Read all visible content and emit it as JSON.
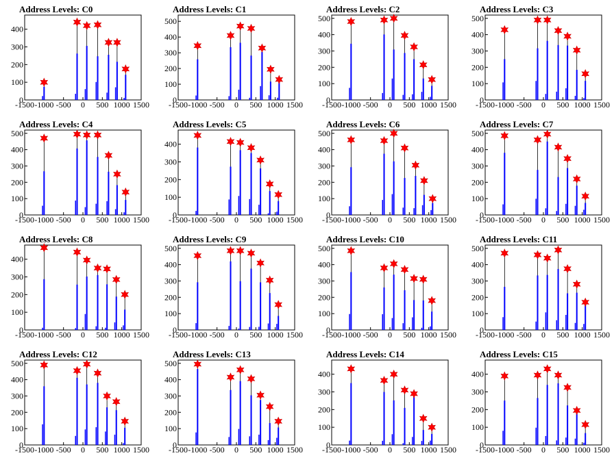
{
  "colors": {
    "bar": "#0000ff",
    "marker": "#ff0000",
    "axis": "#000000"
  },
  "chart_data": [
    {
      "type": "bar",
      "title": "Address Levels: C0",
      "xlim": [
        -1500,
        1500
      ],
      "ylim": [
        0,
        480
      ],
      "yticks": [
        0,
        100,
        200,
        300,
        400
      ],
      "xticks": [
        -1500,
        -1000,
        -500,
        0,
        500,
        1000,
        1500
      ],
      "peaks": [
        {
          "x": -1000,
          "y": 100
        },
        {
          "x": -150,
          "y": 440
        },
        {
          "x": 100,
          "y": 420
        },
        {
          "x": 380,
          "y": 425
        },
        {
          "x": 660,
          "y": 325
        },
        {
          "x": 880,
          "y": 325
        },
        {
          "x": 1100,
          "y": 175
        }
      ]
    },
    {
      "type": "bar",
      "title": "Address Levels: C1",
      "xlim": [
        -1500,
        1500
      ],
      "ylim": [
        0,
        540
      ],
      "yticks": [
        0,
        100,
        200,
        300,
        400,
        500
      ],
      "xticks": [
        -1500,
        -1000,
        -500,
        0,
        500,
        1000,
        1500
      ],
      "peaks": [
        {
          "x": -1000,
          "y": 345
        },
        {
          "x": -150,
          "y": 410
        },
        {
          "x": 100,
          "y": 470
        },
        {
          "x": 380,
          "y": 455
        },
        {
          "x": 660,
          "y": 330
        },
        {
          "x": 880,
          "y": 195
        },
        {
          "x": 1100,
          "y": 130
        }
      ]
    },
    {
      "type": "bar",
      "title": "Address Levels: C2",
      "xlim": [
        -1500,
        1500
      ],
      "ylim": [
        0,
        520
      ],
      "yticks": [
        0,
        100,
        200,
        300,
        400,
        500
      ],
      "xticks": [
        -1500,
        -1000,
        -500,
        0,
        500,
        1000,
        1500
      ],
      "peaks": [
        {
          "x": -1000,
          "y": 480
        },
        {
          "x": -150,
          "y": 490
        },
        {
          "x": 100,
          "y": 500
        },
        {
          "x": 380,
          "y": 395
        },
        {
          "x": 620,
          "y": 325
        },
        {
          "x": 860,
          "y": 215
        },
        {
          "x": 1080,
          "y": 125
        }
      ]
    },
    {
      "type": "bar",
      "title": "Address Levels: C3",
      "xlim": [
        -1500,
        1500
      ],
      "ylim": [
        0,
        520
      ],
      "yticks": [
        0,
        100,
        200,
        300,
        400,
        500
      ],
      "xticks": [
        -1500,
        -1000,
        -500,
        0,
        500,
        1000,
        1500
      ],
      "peaks": [
        {
          "x": -1000,
          "y": 430
        },
        {
          "x": -150,
          "y": 490
        },
        {
          "x": 100,
          "y": 490
        },
        {
          "x": 380,
          "y": 425
        },
        {
          "x": 620,
          "y": 390
        },
        {
          "x": 860,
          "y": 305
        },
        {
          "x": 1080,
          "y": 160
        }
      ]
    },
    {
      "type": "bar",
      "title": "Address Levels: C4",
      "xlim": [
        -1500,
        1500
      ],
      "ylim": [
        0,
        520
      ],
      "yticks": [
        0,
        100,
        200,
        300,
        400,
        500
      ],
      "xticks": [
        -1500,
        -1000,
        -500,
        0,
        500,
        1000,
        1500
      ],
      "peaks": [
        {
          "x": -1000,
          "y": 470
        },
        {
          "x": -150,
          "y": 495
        },
        {
          "x": 100,
          "y": 490
        },
        {
          "x": 380,
          "y": 490
        },
        {
          "x": 660,
          "y": 365
        },
        {
          "x": 880,
          "y": 250
        },
        {
          "x": 1100,
          "y": 140
        }
      ]
    },
    {
      "type": "bar",
      "title": "Address Levels: C5",
      "xlim": [
        -1500,
        1500
      ],
      "ylim": [
        0,
        480
      ],
      "yticks": [
        0,
        100,
        200,
        300,
        400
      ],
      "xticks": [
        -1500,
        -1000,
        -500,
        0,
        500,
        1000,
        1500
      ],
      "peaks": [
        {
          "x": -1000,
          "y": 450
        },
        {
          "x": -150,
          "y": 415
        },
        {
          "x": 100,
          "y": 410
        },
        {
          "x": 380,
          "y": 380
        },
        {
          "x": 620,
          "y": 310
        },
        {
          "x": 860,
          "y": 175
        },
        {
          "x": 1080,
          "y": 115
        }
      ]
    },
    {
      "type": "bar",
      "title": "Address Levels: C6",
      "xlim": [
        -1500,
        1500
      ],
      "ylim": [
        0,
        520
      ],
      "yticks": [
        0,
        100,
        200,
        300,
        400,
        500
      ],
      "xticks": [
        -1500,
        -1000,
        -500,
        0,
        500,
        1000,
        1500
      ],
      "peaks": [
        {
          "x": -1000,
          "y": 460
        },
        {
          "x": -150,
          "y": 455
        },
        {
          "x": 100,
          "y": 500
        },
        {
          "x": 380,
          "y": 410
        },
        {
          "x": 660,
          "y": 305
        },
        {
          "x": 880,
          "y": 210
        },
        {
          "x": 1100,
          "y": 100
        }
      ]
    },
    {
      "type": "bar",
      "title": "Address Levels: C7",
      "xlim": [
        -1500,
        1500
      ],
      "ylim": [
        0,
        520
      ],
      "yticks": [
        0,
        100,
        200,
        300,
        400,
        500
      ],
      "xticks": [
        -1500,
        -1000,
        -500,
        0,
        500,
        1000,
        1500
      ],
      "peaks": [
        {
          "x": -1000,
          "y": 485
        },
        {
          "x": -150,
          "y": 460
        },
        {
          "x": 100,
          "y": 495
        },
        {
          "x": 380,
          "y": 415
        },
        {
          "x": 620,
          "y": 345
        },
        {
          "x": 860,
          "y": 220
        },
        {
          "x": 1080,
          "y": 115
        }
      ]
    },
    {
      "type": "bar",
      "title": "Address Levels: C8",
      "xlim": [
        -1500,
        1500
      ],
      "ylim": [
        0,
        480
      ],
      "yticks": [
        0,
        100,
        200,
        300,
        400
      ],
      "xticks": [
        -1500,
        -1000,
        -500,
        0,
        500,
        1000,
        1500
      ],
      "peaks": [
        {
          "x": -1000,
          "y": 465
        },
        {
          "x": -150,
          "y": 440
        },
        {
          "x": 100,
          "y": 395
        },
        {
          "x": 380,
          "y": 350
        },
        {
          "x": 620,
          "y": 345
        },
        {
          "x": 860,
          "y": 285
        },
        {
          "x": 1080,
          "y": 200
        }
      ]
    },
    {
      "type": "bar",
      "title": "Address Levels: C9",
      "xlim": [
        -1500,
        1500
      ],
      "ylim": [
        0,
        520
      ],
      "yticks": [
        0,
        100,
        200,
        300,
        400,
        500
      ],
      "xticks": [
        -1500,
        -1000,
        -500,
        0,
        500,
        1000,
        1500
      ],
      "peaks": [
        {
          "x": -1000,
          "y": 455
        },
        {
          "x": -150,
          "y": 485
        },
        {
          "x": 100,
          "y": 485
        },
        {
          "x": 380,
          "y": 470
        },
        {
          "x": 620,
          "y": 410
        },
        {
          "x": 860,
          "y": 305
        },
        {
          "x": 1080,
          "y": 155
        }
      ]
    },
    {
      "type": "bar",
      "title": "Address Levels: C10",
      "xlim": [
        -1500,
        1500
      ],
      "ylim": [
        0,
        520
      ],
      "yticks": [
        0,
        100,
        200,
        300,
        400,
        500
      ],
      "xticks": [
        -1500,
        -1000,
        -500,
        0,
        500,
        1000,
        1500
      ],
      "peaks": [
        {
          "x": -1000,
          "y": 485
        },
        {
          "x": -150,
          "y": 380
        },
        {
          "x": 100,
          "y": 405
        },
        {
          "x": 380,
          "y": 370
        },
        {
          "x": 620,
          "y": 315
        },
        {
          "x": 860,
          "y": 310
        },
        {
          "x": 1080,
          "y": 180
        }
      ]
    },
    {
      "type": "bar",
      "title": "Address Levels: C11",
      "xlim": [
        -1500,
        1500
      ],
      "ylim": [
        0,
        520
      ],
      "yticks": [
        0,
        100,
        200,
        300,
        400,
        500
      ],
      "xticks": [
        -1500,
        -1000,
        -500,
        0,
        500,
        1000,
        1500
      ],
      "peaks": [
        {
          "x": -1000,
          "y": 470
        },
        {
          "x": -150,
          "y": 460
        },
        {
          "x": 100,
          "y": 440
        },
        {
          "x": 380,
          "y": 490
        },
        {
          "x": 620,
          "y": 375
        },
        {
          "x": 860,
          "y": 280
        },
        {
          "x": 1080,
          "y": 170
        }
      ]
    },
    {
      "type": "bar",
      "title": "Address Levels: C12",
      "xlim": [
        -1500,
        1500
      ],
      "ylim": [
        0,
        520
      ],
      "yticks": [
        0,
        100,
        200,
        300,
        400,
        500
      ],
      "xticks": [
        -1500,
        -1000,
        -500,
        0,
        500,
        1000,
        1500
      ],
      "peaks": [
        {
          "x": -1000,
          "y": 490
        },
        {
          "x": -150,
          "y": 455
        },
        {
          "x": 100,
          "y": 495
        },
        {
          "x": 380,
          "y": 440
        },
        {
          "x": 620,
          "y": 300
        },
        {
          "x": 860,
          "y": 265
        },
        {
          "x": 1080,
          "y": 145
        }
      ]
    },
    {
      "type": "bar",
      "title": "Address Levels: C13",
      "xlim": [
        -1500,
        1500
      ],
      "ylim": [
        0,
        520
      ],
      "yticks": [
        0,
        100,
        200,
        300,
        400,
        500
      ],
      "xticks": [
        -1500,
        -1000,
        -500,
        0,
        500,
        1000,
        1500
      ],
      "peaks": [
        {
          "x": -1000,
          "y": 495
        },
        {
          "x": -150,
          "y": 415
        },
        {
          "x": 100,
          "y": 460
        },
        {
          "x": 380,
          "y": 405
        },
        {
          "x": 620,
          "y": 305
        },
        {
          "x": 860,
          "y": 235
        },
        {
          "x": 1080,
          "y": 145
        }
      ]
    },
    {
      "type": "bar",
      "title": "Address Levels: C14",
      "xlim": [
        -1500,
        1500
      ],
      "ylim": [
        0,
        480
      ],
      "yticks": [
        0,
        100,
        200,
        300,
        400
      ],
      "xticks": [
        -1500,
        -1000,
        -500,
        0,
        500,
        1000,
        1500
      ],
      "peaks": [
        {
          "x": -1000,
          "y": 430
        },
        {
          "x": -150,
          "y": 365
        },
        {
          "x": 100,
          "y": 400
        },
        {
          "x": 380,
          "y": 310
        },
        {
          "x": 620,
          "y": 290
        },
        {
          "x": 860,
          "y": 150
        },
        {
          "x": 1080,
          "y": 100
        }
      ]
    },
    {
      "type": "bar",
      "title": "Address Levels: C15",
      "xlim": [
        -1500,
        1500
      ],
      "ylim": [
        0,
        480
      ],
      "yticks": [
        0,
        100,
        200,
        300,
        400
      ],
      "xticks": [
        -1500,
        -1000,
        -500,
        0,
        500,
        1000,
        1500
      ],
      "peaks": [
        {
          "x": -1000,
          "y": 390
        },
        {
          "x": -150,
          "y": 395
        },
        {
          "x": 100,
          "y": 430
        },
        {
          "x": 380,
          "y": 395
        },
        {
          "x": 620,
          "y": 325
        },
        {
          "x": 860,
          "y": 195
        },
        {
          "x": 1080,
          "y": 115
        }
      ]
    }
  ]
}
